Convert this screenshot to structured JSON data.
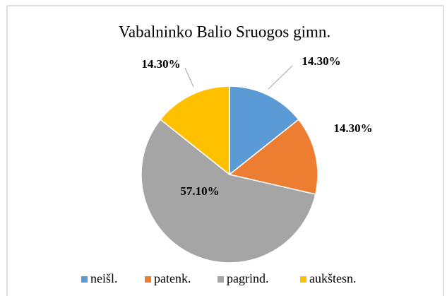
{
  "chart_data": {
    "type": "pie",
    "title": "Vabalninko Balio Sruogos gimn.",
    "categories": [
      "neišl.",
      "patenk.",
      "pagrind.",
      "aukštesn."
    ],
    "values": [
      14.3,
      14.3,
      57.1,
      14.3
    ],
    "value_labels": [
      "14.30%",
      "14.30%",
      "57.10%",
      "14.30%"
    ],
    "colors": [
      "#5b9bd5",
      "#ed7d31",
      "#a5a5a5",
      "#ffc000"
    ],
    "legend": "bottom"
  }
}
